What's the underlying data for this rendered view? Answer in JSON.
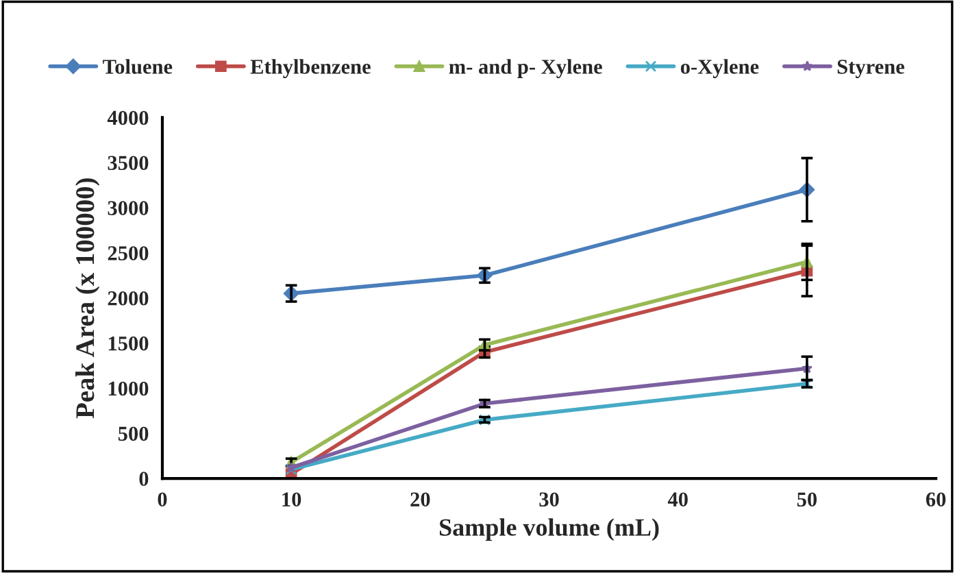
{
  "chart_data": {
    "type": "line",
    "xlabel": "Sample volume (mL)",
    "ylabel": "Peak Area (x 100000)",
    "x": [
      10,
      25,
      50
    ],
    "series": [
      {
        "name": "Toluene",
        "color": "#4a7ebb",
        "marker": "diamond",
        "values": [
          2050,
          2250,
          3200
        ],
        "errors": [
          90,
          80,
          350
        ]
      },
      {
        "name": "Ethylbenzene",
        "color": "#be4b48",
        "marker": "square",
        "values": [
          50,
          1400,
          2300
        ],
        "errors": [
          null,
          60,
          280
        ]
      },
      {
        "name": "m- and p- Xylene",
        "color": "#98b954",
        "marker": "triangle",
        "values": [
          180,
          1480,
          2400
        ],
        "errors": [
          40,
          60,
          200
        ]
      },
      {
        "name": "o-Xylene",
        "color": "#46aac5",
        "marker": "cross",
        "values": [
          100,
          650,
          1050
        ],
        "errors": [
          null,
          30,
          40
        ]
      },
      {
        "name": "Styrene",
        "color": "#7d60a0",
        "marker": "star",
        "values": [
          120,
          830,
          1220
        ],
        "errors": [
          null,
          40,
          130
        ]
      }
    ],
    "xlim": [
      0,
      60
    ],
    "xticks": [
      0,
      10,
      20,
      30,
      40,
      50,
      60
    ],
    "ylim": [
      0,
      4000
    ],
    "yticks": [
      0,
      500,
      1000,
      1500,
      2000,
      2500,
      3000,
      3500,
      4000
    ],
    "grid": false,
    "legend": "top"
  }
}
